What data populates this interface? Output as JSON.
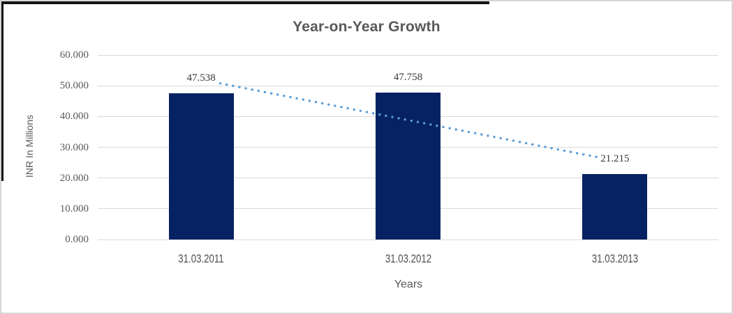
{
  "chart_data": {
    "type": "bar",
    "title": "Year-on-Year Growth",
    "categories": [
      "31.03.2011",
      "31.03.2012",
      "31.03.2013"
    ],
    "values": [
      47.538,
      47.758,
      21.215
    ],
    "value_labels": [
      "47.538",
      "47.758",
      "21.215"
    ],
    "xlabel": "Years",
    "ylabel": "INR In Millions",
    "ylim": [
      0,
      60
    ],
    "ytick_step": 10,
    "ytick_labels": [
      "0.000",
      "10.000",
      "20.000",
      "30.000",
      "40.000",
      "50.000",
      "60.000"
    ],
    "grid": true,
    "legend": "none",
    "bar_color": "#062263",
    "gridline_color": "#d9d9d9",
    "title_color": "#595959",
    "trendline": {
      "type": "linear",
      "style": "dotted",
      "color": "#5b9bd5",
      "fit_values": [
        51.998,
        38.836,
        25.675
      ]
    }
  },
  "frame": {
    "outer_border_color": "#d6d6d6",
    "accent_border_color": "#141414",
    "background": "#ffffff"
  }
}
